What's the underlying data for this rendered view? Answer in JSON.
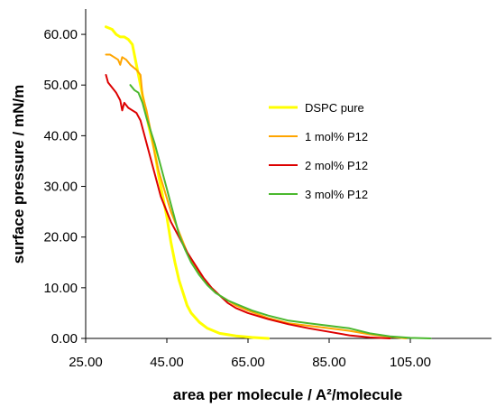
{
  "chart_data": {
    "type": "line",
    "title": "",
    "xlabel": "area per molecule / A²/molecule",
    "ylabel": "surface pressure / mN/m",
    "xlim": [
      25,
      125
    ],
    "ylim": [
      0,
      65
    ],
    "x_ticks": [
      "25.00",
      "45.00",
      "65.00",
      "85.00",
      "105.00"
    ],
    "x_tick_values": [
      25,
      45,
      65,
      85,
      105
    ],
    "y_ticks": [
      "0.00",
      "10.00",
      "20.00",
      "30.00",
      "40.00",
      "50.00",
      "60.00"
    ],
    "y_tick_values": [
      0,
      10,
      20,
      30,
      40,
      50,
      60
    ],
    "grid": false,
    "legend_position": "right",
    "series": [
      {
        "name": "DSPC pure",
        "color": "#ffff00",
        "points": [
          [
            30.0,
            61.5
          ],
          [
            31.5,
            61.0
          ],
          [
            32.5,
            60.0
          ],
          [
            33.5,
            59.5
          ],
          [
            34.5,
            59.5
          ],
          [
            35.5,
            59.0
          ],
          [
            36.5,
            58.0
          ],
          [
            38.0,
            52.0
          ],
          [
            39.5,
            46.0
          ],
          [
            40.5,
            42.0
          ],
          [
            42.0,
            37.0
          ],
          [
            43.0,
            32.0
          ],
          [
            44.0,
            28.0
          ],
          [
            45.0,
            24.0
          ],
          [
            46.0,
            19.0
          ],
          [
            47.0,
            15.0
          ],
          [
            48.0,
            11.5
          ],
          [
            49.0,
            9.0
          ],
          [
            50.0,
            6.5
          ],
          [
            51.0,
            5.0
          ],
          [
            53.0,
            3.2
          ],
          [
            55.0,
            2.0
          ],
          [
            58.0,
            1.0
          ],
          [
            62.0,
            0.5
          ],
          [
            66.0,
            0.2
          ],
          [
            70.0,
            0.0
          ]
        ]
      },
      {
        "name": "1 mol% P12",
        "color": "#ffa500",
        "points": [
          [
            30.0,
            56.0
          ],
          [
            31.0,
            56.0
          ],
          [
            32.0,
            55.5
          ],
          [
            33.0,
            55.0
          ],
          [
            33.5,
            54.0
          ],
          [
            34.0,
            55.5
          ],
          [
            35.0,
            55.0
          ],
          [
            36.0,
            54.0
          ],
          [
            37.5,
            53.0
          ],
          [
            38.5,
            52.0
          ],
          [
            39.0,
            48.0
          ],
          [
            40.0,
            45.0
          ],
          [
            41.0,
            41.0
          ],
          [
            42.0,
            36.5
          ],
          [
            43.0,
            33.0
          ],
          [
            44.5,
            29.0
          ],
          [
            46.0,
            25.0
          ],
          [
            48.0,
            21.0
          ],
          [
            50.0,
            17.0
          ],
          [
            52.0,
            14.0
          ],
          [
            54.0,
            11.5
          ],
          [
            56.0,
            10.0
          ],
          [
            58.0,
            8.5
          ],
          [
            60.0,
            7.5
          ],
          [
            62.0,
            6.5
          ],
          [
            65.0,
            5.5
          ],
          [
            70.0,
            4.0
          ],
          [
            75.0,
            3.0
          ],
          [
            80.0,
            2.5
          ],
          [
            85.0,
            2.0
          ],
          [
            90.0,
            1.5
          ],
          [
            95.0,
            0.8
          ],
          [
            100.0,
            0.3
          ],
          [
            104.0,
            0.0
          ]
        ]
      },
      {
        "name": "2 mol% P12",
        "color": "#dd0000",
        "points": [
          [
            30.0,
            52.0
          ],
          [
            30.5,
            50.5
          ],
          [
            31.5,
            49.5
          ],
          [
            32.5,
            48.5
          ],
          [
            33.5,
            47.0
          ],
          [
            34.0,
            45.0
          ],
          [
            34.5,
            46.5
          ],
          [
            35.5,
            45.5
          ],
          [
            36.5,
            45.0
          ],
          [
            37.5,
            44.5
          ],
          [
            38.5,
            43.0
          ],
          [
            39.5,
            40.0
          ],
          [
            40.5,
            37.0
          ],
          [
            41.5,
            34.0
          ],
          [
            42.5,
            31.0
          ],
          [
            43.5,
            28.0
          ],
          [
            44.5,
            26.0
          ],
          [
            46.0,
            23.0
          ],
          [
            48.0,
            20.0
          ],
          [
            50.0,
            17.0
          ],
          [
            52.0,
            14.5
          ],
          [
            54.0,
            12.0
          ],
          [
            56.0,
            10.0
          ],
          [
            58.0,
            8.5
          ],
          [
            60.0,
            7.0
          ],
          [
            62.0,
            6.0
          ],
          [
            65.0,
            5.0
          ],
          [
            70.0,
            3.8
          ],
          [
            75.0,
            2.8
          ],
          [
            80.0,
            2.0
          ],
          [
            85.0,
            1.3
          ],
          [
            90.0,
            0.6
          ],
          [
            95.0,
            0.2
          ],
          [
            100.0,
            0.0
          ]
        ]
      },
      {
        "name": "3 mol% P12",
        "color": "#4ab82e",
        "points": [
          [
            36.0,
            50.0
          ],
          [
            37.0,
            49.0
          ],
          [
            38.0,
            48.5
          ],
          [
            39.0,
            46.5
          ],
          [
            40.0,
            43.5
          ],
          [
            41.0,
            41.0
          ],
          [
            42.0,
            38.5
          ],
          [
            43.0,
            35.5
          ],
          [
            44.0,
            32.5
          ],
          [
            45.0,
            29.5
          ],
          [
            46.0,
            26.5
          ],
          [
            47.0,
            23.5
          ],
          [
            48.0,
            20.5
          ],
          [
            49.5,
            17.5
          ],
          [
            51.0,
            15.0
          ],
          [
            53.0,
            12.5
          ],
          [
            55.0,
            10.5
          ],
          [
            57.0,
            9.0
          ],
          [
            60.0,
            7.5
          ],
          [
            63.0,
            6.5
          ],
          [
            66.0,
            5.5
          ],
          [
            70.0,
            4.5
          ],
          [
            75.0,
            3.5
          ],
          [
            80.0,
            3.0
          ],
          [
            85.0,
            2.5
          ],
          [
            90.0,
            2.0
          ],
          [
            95.0,
            1.0
          ],
          [
            100.0,
            0.4
          ],
          [
            105.0,
            0.1
          ],
          [
            110.0,
            0.0
          ]
        ]
      }
    ]
  }
}
